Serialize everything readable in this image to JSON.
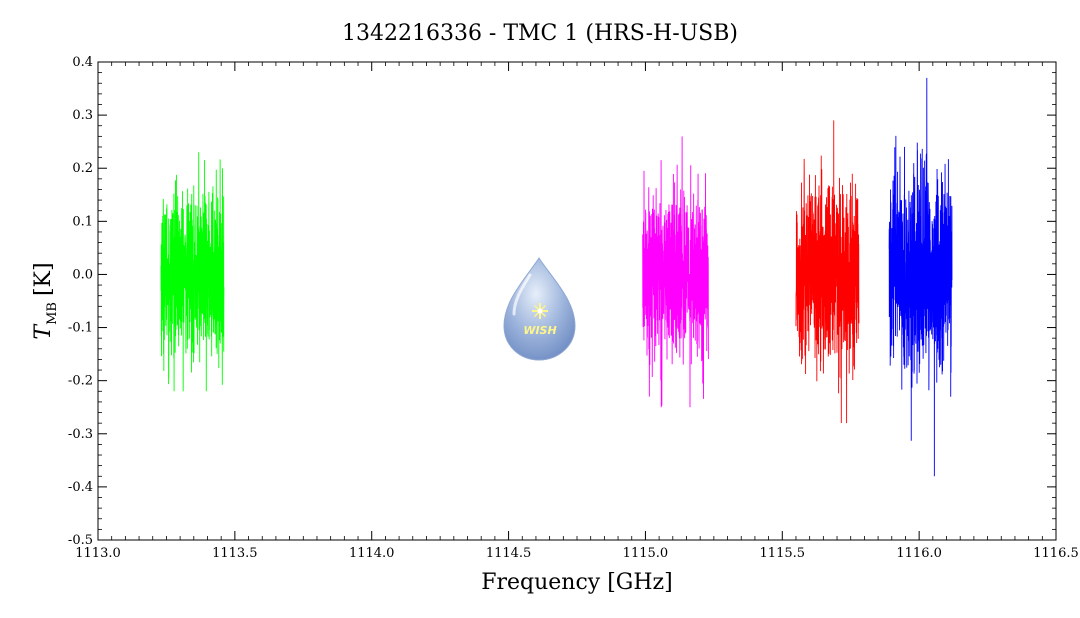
{
  "chart_data": {
    "type": "line",
    "title": "1342216336 - TMC 1 (HRS-H-USB)",
    "xlabel": "Frequency [GHz]",
    "ylabel_main": "T",
    "ylabel_sub": "MB",
    "ylabel_unit": "[K]",
    "xlim": [
      1113.0,
      1116.5
    ],
    "ylim": [
      -0.5,
      0.4
    ],
    "xticks": [
      "1113.0",
      "1113.5",
      "1114.0",
      "1114.5",
      "1115.0",
      "1115.5",
      "1116.0",
      "1116.5"
    ],
    "yticks": [
      "0.4",
      "0.3",
      "0.2",
      "0.1",
      "0.0",
      "-0.1",
      "-0.2",
      "-0.3",
      "-0.4",
      "-0.5"
    ],
    "grid": false,
    "logo": "WISH",
    "series": [
      {
        "color": "#00ff00",
        "x_range": [
          1113.23,
          1113.46
        ],
        "noise_sigma": 0.085,
        "y_min": -0.22,
        "y_max": 0.23
      },
      {
        "color": "#ff00ff",
        "x_range": [
          1114.99,
          1115.23
        ],
        "noise_sigma": 0.09,
        "y_min": -0.25,
        "y_max": 0.26
      },
      {
        "color": "#ff0000",
        "x_range": [
          1115.55,
          1115.78
        ],
        "noise_sigma": 0.1,
        "y_min": -0.28,
        "y_max": 0.29
      },
      {
        "color": "#0000ff",
        "x_range": [
          1115.89,
          1116.12
        ],
        "noise_sigma": 0.11,
        "y_min": -0.38,
        "y_max": 0.37
      }
    ]
  }
}
